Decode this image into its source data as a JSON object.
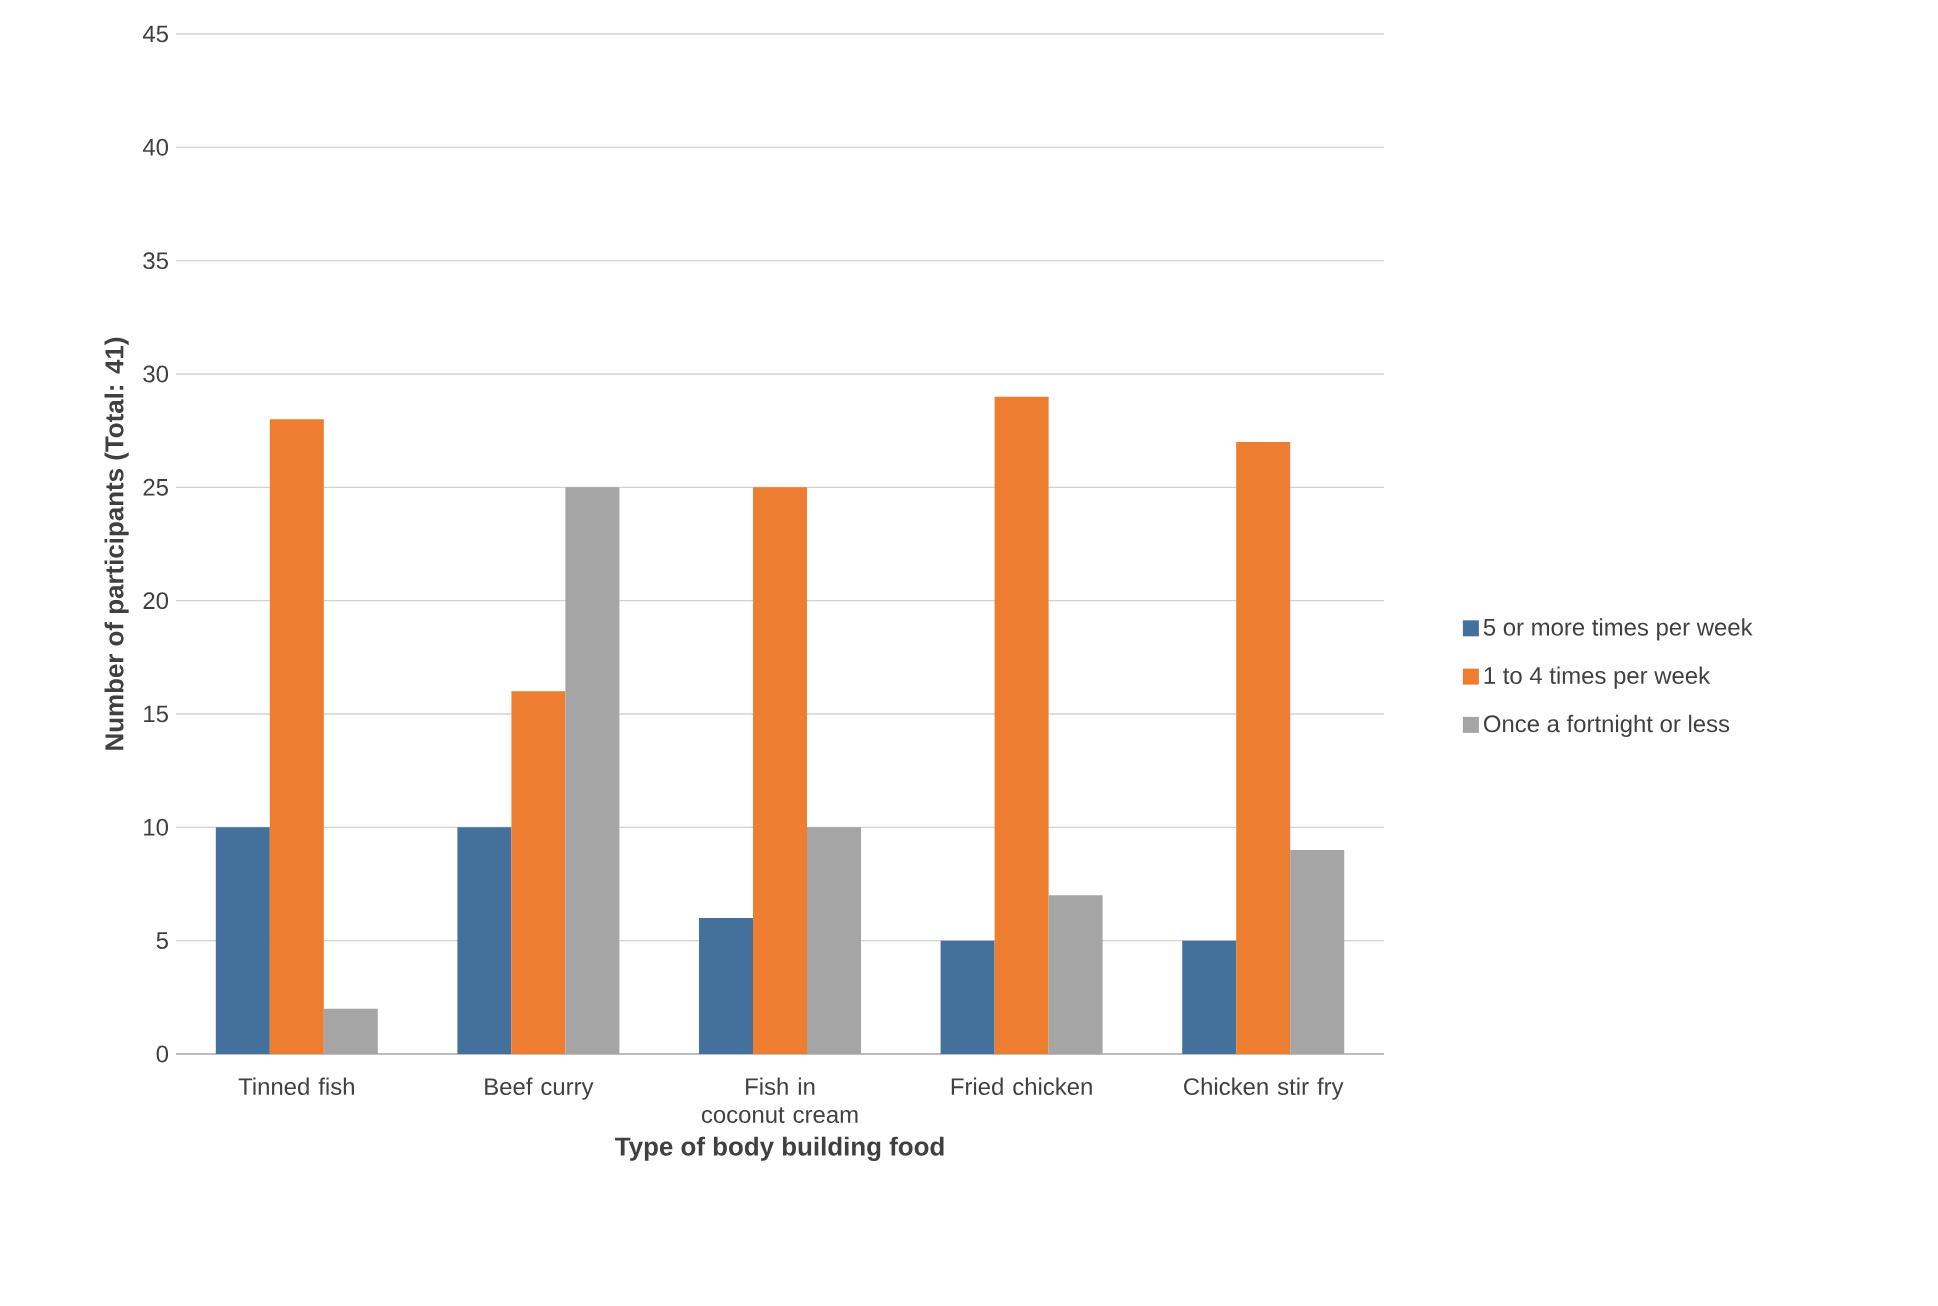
{
  "chart_data": {
    "type": "bar",
    "xlabel": "Type of body building food",
    "ylabel": "Number of participants (Total: 41)",
    "categories": [
      "Tinned fish",
      "Beef curry",
      "Fish in coconut cream",
      "Fried chicken",
      "Chicken stir fry"
    ],
    "series": [
      {
        "name": "5 or more times per week",
        "color": "#44719c",
        "values": [
          10,
          10,
          6,
          5,
          5
        ]
      },
      {
        "name": "1 to 4 times per week",
        "color": "#ed7d31",
        "values": [
          28,
          16,
          25,
          29,
          27
        ]
      },
      {
        "name": "Once a fortnight or less",
        "color": "#a5a5a5",
        "values": [
          2,
          25,
          10,
          7,
          9
        ]
      }
    ],
    "ylim": [
      0,
      45
    ],
    "yticks": [
      0,
      5,
      10,
      15,
      20,
      25,
      30,
      35,
      40,
      45
    ],
    "grid": "y",
    "legend": "right"
  }
}
